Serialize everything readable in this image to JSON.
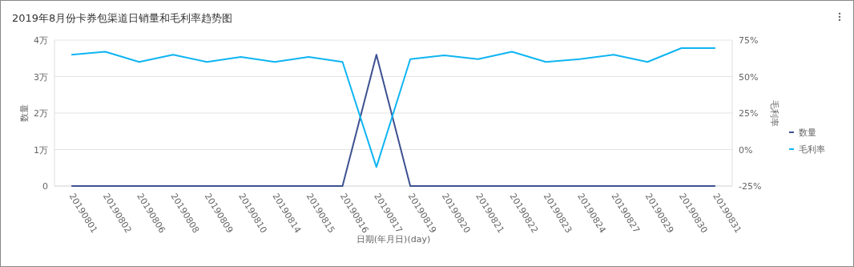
{
  "chart_data": {
    "type": "line",
    "title": "2019年8月份卡券包渠道日销量和毛利率趋势图",
    "xlabel": "日期(年月日)(day)",
    "ylabel": "数量",
    "y2label": "毛利率",
    "categories": [
      "20190801",
      "20190802",
      "20190806",
      "20190808",
      "20190809",
      "20190810",
      "20190814",
      "20190815",
      "20190816",
      "20190817",
      "20190819",
      "20190820",
      "20190821",
      "20190822",
      "20190823",
      "20190824",
      "20190827",
      "20190829",
      "20190830",
      "20190831"
    ],
    "series": [
      {
        "name": "数量",
        "color": "#3d5191",
        "values": [
          0,
          0,
          0,
          0,
          0,
          0,
          0,
          0,
          0,
          3.6,
          0,
          0,
          0,
          0,
          0,
          0,
          0,
          0,
          0,
          0
        ]
      },
      {
        "name": "毛利率",
        "color": "#0fb5f2",
        "axis": "y2",
        "values": [
          65,
          67,
          60,
          65,
          60,
          63.5,
          60,
          63.5,
          60,
          -12,
          62,
          64.5,
          62,
          67,
          60,
          62,
          65,
          60,
          69.5,
          69.5
        ]
      }
    ],
    "ylim": [
      0,
      4
    ],
    "yticks": [
      0,
      {
        "value": 1,
        "label": "1万"
      },
      {
        "value": 2,
        "label": "2万"
      },
      {
        "value": 3,
        "label": "3万"
      },
      {
        "value": 4,
        "label": "4万"
      }
    ],
    "y2lim": [
      -25,
      75
    ],
    "y2ticks": [
      {
        "value": -25,
        "label": "-25%"
      },
      {
        "value": 0,
        "label": "0%"
      },
      {
        "value": 25,
        "label": "25%"
      },
      {
        "value": 50,
        "label": "50%"
      },
      {
        "value": 75,
        "label": "75%"
      }
    ],
    "grid": "y",
    "legend": "right",
    "marker": "none",
    "line_style": "solid"
  }
}
